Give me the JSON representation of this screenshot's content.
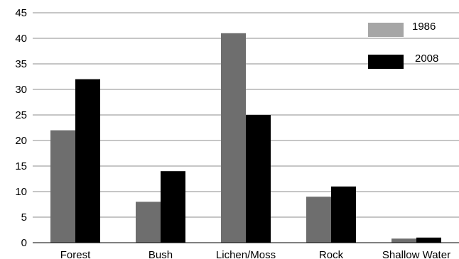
{
  "chart_data": {
    "type": "bar",
    "categories": [
      "Forest",
      "Bush",
      "Lichen/Moss",
      "Rock",
      "Shallow Water"
    ],
    "series": [
      {
        "name": "1986",
        "values": [
          22,
          8,
          41,
          9,
          0.8
        ],
        "color": "#6e6e6e",
        "legend_color": "#a6a6a6"
      },
      {
        "name": "2008",
        "values": [
          32,
          14,
          25,
          11,
          1
        ],
        "color": "#000000",
        "legend_color": "#000000"
      }
    ],
    "title": "",
    "xlabel": "",
    "ylabel": "",
    "ylim": [
      0,
      45
    ],
    "yticks": [
      "0",
      "5",
      "10",
      "15",
      "20",
      "25",
      "30",
      "35",
      "40",
      "45"
    ],
    "grid": true,
    "legend_position": "top-right"
  }
}
